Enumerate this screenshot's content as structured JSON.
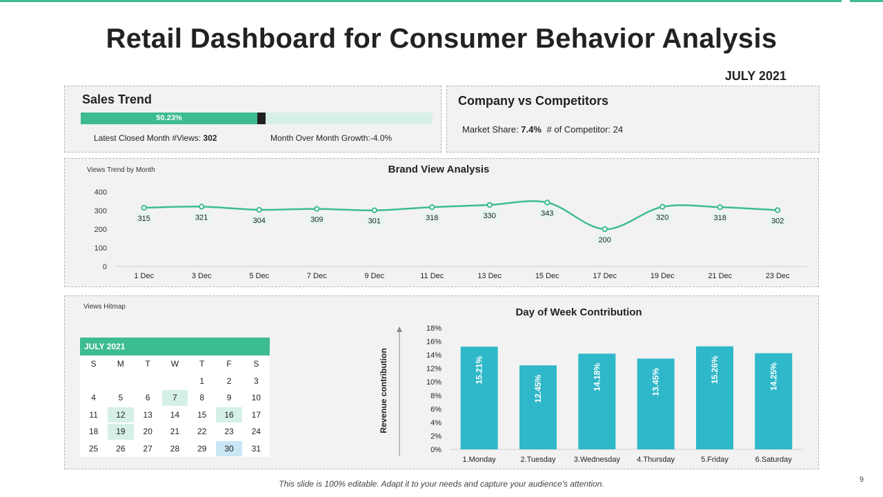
{
  "header": {
    "title": "Retail Dashboard for Consumer Behavior Analysis",
    "month": "JULY 2021"
  },
  "sales_trend": {
    "title": "Sales Trend",
    "progress_pct": 50.23,
    "progress_label": "50.23%",
    "views_label": "Latest Closed Month #Views: ",
    "views_value": "302",
    "growth_label": "Month Over Month Growth:-4.0%"
  },
  "competitors": {
    "title": "Company vs Competitors",
    "share_label": "Market Share: ",
    "share_value": "7.4%",
    "competitor_label": "# of Competitor: 24"
  },
  "brand_view": {
    "small_label": "Views Trend by Month"
  },
  "heatmap": {
    "small_label": "Views Hitmap",
    "calendar_title": "JULY 2021",
    "weekdays": [
      "S",
      "M",
      "T",
      "W",
      "T",
      "F",
      "S"
    ],
    "weeks": [
      [
        "",
        "",
        "",
        "",
        "1",
        "2",
        "3"
      ],
      [
        "4",
        "5",
        "6",
        "7",
        "8",
        "9",
        "10"
      ],
      [
        "11",
        "12",
        "13",
        "14",
        "15",
        "16",
        "17"
      ],
      [
        "18",
        "19",
        "20",
        "21",
        "22",
        "23",
        "24"
      ],
      [
        "25",
        "26",
        "27",
        "28",
        "29",
        "30",
        "31"
      ]
    ],
    "highlight_green": [
      "7",
      "12",
      "16",
      "19"
    ],
    "highlight_blue": [
      "30"
    ]
  },
  "chart_data": [
    {
      "type": "line",
      "title": "Brand View Analysis",
      "x": [
        "1 Dec",
        "3 Dec",
        "5 Dec",
        "7 Dec",
        "9 Dec",
        "11 Dec",
        "13 Dec",
        "15 Dec",
        "17 Dec",
        "19 Dec",
        "21 Dec",
        "23 Dec"
      ],
      "values": [
        315,
        321,
        304,
        309,
        301,
        318,
        330,
        343,
        200,
        320,
        318,
        302
      ],
      "ylim": [
        0,
        400
      ],
      "yticks": [
        0,
        100,
        200,
        300,
        400
      ],
      "color": "#3dbb93"
    },
    {
      "type": "bar",
      "title": "Day of Week Contribution",
      "ylabel": "Revenue contribution",
      "categories": [
        "1.Monday",
        "2.Tuesday",
        "3.Wednesday",
        "4.Thursday",
        "5.Friday",
        "6.Saturday"
      ],
      "values": [
        15.21,
        12.45,
        14.18,
        13.45,
        15.26,
        14.25
      ],
      "labels": [
        "15.21%",
        "12.45%",
        "14.18%",
        "13.45%",
        "15.26%",
        "14.25%"
      ],
      "ylim": [
        0,
        18
      ],
      "yticks": [
        "0%",
        "2%",
        "4%",
        "6%",
        "8%",
        "10%",
        "12%",
        "14%",
        "16%",
        "18%"
      ],
      "color": "#2fb8c9"
    }
  ],
  "footer": {
    "note": "This slide is 100% editable. Adapt it to your needs and capture your audience's attention.",
    "page": "9"
  }
}
